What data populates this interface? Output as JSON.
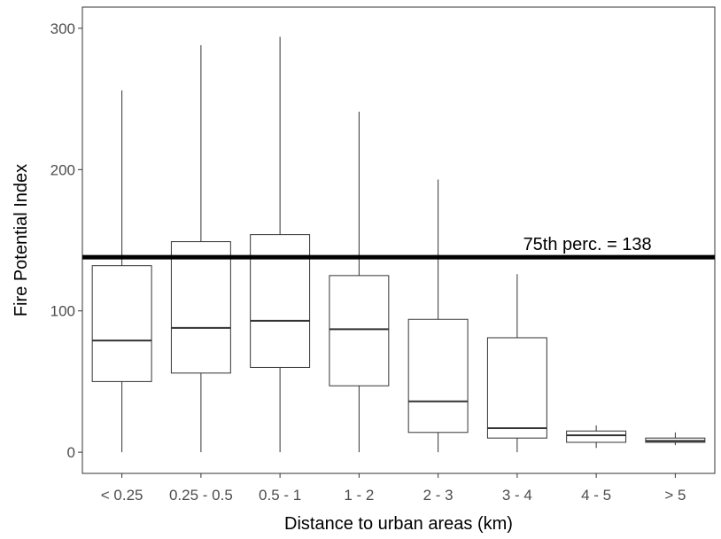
{
  "chart_data": {
    "type": "box",
    "xlabel": "Distance to urban areas (km)",
    "ylabel": "Fire Potential Index",
    "ylim": [
      -15,
      315
    ],
    "yticks": [
      0,
      100,
      200,
      300
    ],
    "grid": false,
    "categories": [
      "< 0.25",
      "0.25 - 0.5",
      "0.5 - 1",
      "1 - 2",
      "2 - 3",
      "3 - 4",
      "4 - 5",
      "> 5"
    ],
    "boxes": [
      {
        "min": 0,
        "q1": 50,
        "median": 79,
        "q3": 132,
        "max": 256
      },
      {
        "min": 0,
        "q1": 56,
        "median": 88,
        "q3": 149,
        "max": 288
      },
      {
        "min": 0,
        "q1": 60,
        "median": 93,
        "q3": 154,
        "max": 294
      },
      {
        "min": 0,
        "q1": 47,
        "median": 87,
        "q3": 125,
        "max": 241
      },
      {
        "min": 0,
        "q1": 14,
        "median": 36,
        "q3": 94,
        "max": 193
      },
      {
        "min": 0,
        "q1": 10,
        "median": 17,
        "q3": 81,
        "max": 126
      },
      {
        "min": 3,
        "q1": 7,
        "median": 12,
        "q3": 15,
        "max": 19
      },
      {
        "min": 5,
        "q1": 7,
        "median": 8,
        "q3": 10,
        "max": 14
      }
    ],
    "reference_line": {
      "value": 138,
      "label": "75th perc. = 138"
    },
    "colors": {
      "box_fill": "#ffffff",
      "stroke": "#333333",
      "reference_line": "#000000",
      "tick_text": "#4d4d4d"
    }
  }
}
